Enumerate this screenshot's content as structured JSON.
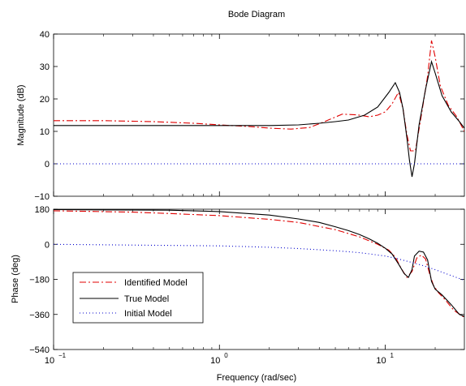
{
  "chart_data": {
    "type": "line",
    "title": "Bode Diagram",
    "xlabel": "Frequency  (rad/sec)",
    "xscale": "log",
    "xlim": [
      0.1,
      30
    ],
    "x_ticks": [
      {
        "value": 0.1,
        "base": "10",
        "exp": "−1"
      },
      {
        "value": 1,
        "base": "10",
        "exp": "0"
      },
      {
        "value": 10,
        "base": "10",
        "exp": "1"
      }
    ],
    "legend": {
      "placement": "lower-left of phase plot",
      "entries": [
        "Identified Model",
        "True Model",
        "Initial Model"
      ]
    },
    "series_styles": [
      {
        "name": "Identified Model",
        "color": "#e00000",
        "dash": "8,3,2,3"
      },
      {
        "name": "True Model",
        "color": "#000000",
        "dash": ""
      },
      {
        "name": "Initial Model",
        "color": "#0000cc",
        "dash": "1,3"
      }
    ],
    "magnitude": {
      "ylabel": "Magnitude (dB)",
      "ylim": [
        -10,
        40
      ],
      "yticks": [
        -10,
        0,
        10,
        20,
        30,
        40
      ],
      "series": [
        {
          "name": "Identified Model",
          "points": [
            [
              0.1,
              13.3
            ],
            [
              0.2,
              13.3
            ],
            [
              0.4,
              13.0
            ],
            [
              0.7,
              12.5
            ],
            [
              1.0,
              12.0
            ],
            [
              1.5,
              11.5
            ],
            [
              2.0,
              11.0
            ],
            [
              2.7,
              10.7
            ],
            [
              3.5,
              11.2
            ],
            [
              4.3,
              13.0
            ],
            [
              5.5,
              15.3
            ],
            [
              6.8,
              15.1
            ],
            [
              8.0,
              14.5
            ],
            [
              9.0,
              15.0
            ],
            [
              10.0,
              16.0
            ],
            [
              11.0,
              18.5
            ],
            [
              12.0,
              22.0
            ],
            [
              12.8,
              17.0
            ],
            [
              13.5,
              9.0
            ],
            [
              14.2,
              4.0
            ],
            [
              15.2,
              4.0
            ],
            [
              16.5,
              15.0
            ],
            [
              18.0,
              27.0
            ],
            [
              19.0,
              38.0
            ],
            [
              20.0,
              33.0
            ],
            [
              21.5,
              24.0
            ],
            [
              24.0,
              18.0
            ],
            [
              27.0,
              14.5
            ],
            [
              30.0,
              10.0
            ]
          ]
        },
        {
          "name": "True Model",
          "points": [
            [
              0.1,
              11.8
            ],
            [
              0.5,
              11.8
            ],
            [
              1.0,
              11.8
            ],
            [
              2.0,
              11.8
            ],
            [
              3.0,
              12.0
            ],
            [
              4.0,
              12.5
            ],
            [
              5.0,
              13.0
            ],
            [
              6.0,
              13.5
            ],
            [
              7.5,
              15.0
            ],
            [
              9.0,
              17.5
            ],
            [
              10.5,
              22.0
            ],
            [
              11.5,
              25.0
            ],
            [
              12.2,
              22.0
            ],
            [
              12.8,
              17.0
            ],
            [
              13.5,
              8.0
            ],
            [
              14.0,
              1.0
            ],
            [
              14.5,
              -4.0
            ],
            [
              15.0,
              0.0
            ],
            [
              16.0,
              12.0
            ],
            [
              17.5,
              23.0
            ],
            [
              19.0,
              31.5
            ],
            [
              20.0,
              28.0
            ],
            [
              22.0,
              21.0
            ],
            [
              25.0,
              16.0
            ],
            [
              28.0,
              13.0
            ],
            [
              30.0,
              11.0
            ]
          ]
        },
        {
          "name": "Initial Model",
          "points": [
            [
              0.1,
              0
            ],
            [
              30,
              0
            ]
          ]
        }
      ]
    },
    "phase": {
      "ylabel": "Phase (deg)",
      "ylim": [
        -540,
        180
      ],
      "yticks": [
        -540,
        -360,
        -180,
        0,
        180
      ],
      "series": [
        {
          "name": "Identified Model",
          "points": [
            [
              0.1,
              172
            ],
            [
              0.3,
              165
            ],
            [
              0.5,
              158
            ],
            [
              1.0,
              147
            ],
            [
              2.0,
              128
            ],
            [
              3.0,
              112
            ],
            [
              5.0,
              75
            ],
            [
              7.0,
              38
            ],
            [
              9.0,
              0
            ],
            [
              10.5,
              -30
            ],
            [
              11.5,
              -65
            ],
            [
              12.5,
              -125
            ],
            [
              13.5,
              -170
            ],
            [
              14.5,
              -140
            ],
            [
              15.5,
              -70
            ],
            [
              16.5,
              -55
            ],
            [
              17.5,
              -75
            ],
            [
              18.5,
              -150
            ],
            [
              19.5,
              -210
            ],
            [
              21.0,
              -250
            ],
            [
              23.0,
              -285
            ],
            [
              26.0,
              -340
            ],
            [
              30.0,
              -375
            ]
          ]
        },
        {
          "name": "True Model",
          "points": [
            [
              0.1,
              178
            ],
            [
              0.5,
              175
            ],
            [
              1.0,
              168
            ],
            [
              2.0,
              150
            ],
            [
              3.0,
              130
            ],
            [
              4.0,
              112
            ],
            [
              5.0,
              90
            ],
            [
              6.0,
              70
            ],
            [
              7.0,
              50
            ],
            [
              8.0,
              28
            ],
            [
              9.0,
              5
            ],
            [
              10.0,
              -20
            ],
            [
              11.0,
              -50
            ],
            [
              12.0,
              -100
            ],
            [
              13.0,
              -150
            ],
            [
              13.8,
              -170
            ],
            [
              14.5,
              -130
            ],
            [
              15.0,
              -60
            ],
            [
              16.0,
              -35
            ],
            [
              17.0,
              -40
            ],
            [
              18.0,
              -80
            ],
            [
              19.0,
              -190
            ],
            [
              20.0,
              -230
            ],
            [
              22.0,
              -260
            ],
            [
              25.0,
              -310
            ],
            [
              28.0,
              -360
            ],
            [
              30.0,
              -370
            ]
          ]
        },
        {
          "name": "Initial Model",
          "points": [
            [
              0.1,
              0
            ],
            [
              1.0,
              -8
            ],
            [
              2.0,
              -15
            ],
            [
              3.0,
              -22
            ],
            [
              4.0,
              -28
            ],
            [
              5.0,
              -33
            ],
            [
              6.0,
              -38
            ],
            [
              7.0,
              -43
            ],
            [
              8.0,
              -49
            ],
            [
              9.0,
              -55
            ],
            [
              10.0,
              -60
            ],
            [
              12.0,
              -75
            ],
            [
              14.0,
              -90
            ],
            [
              17.0,
              -110
            ],
            [
              20.0,
              -130
            ],
            [
              24.0,
              -155
            ],
            [
              30.0,
              -185
            ]
          ]
        }
      ]
    }
  }
}
